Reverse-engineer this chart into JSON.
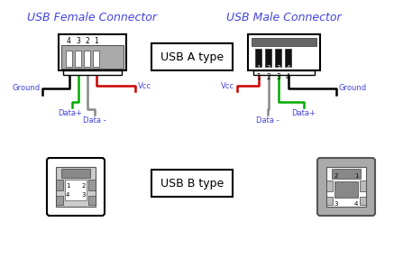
{
  "title_female": "USB Female Connector",
  "title_male": "USB Male Connector",
  "label_a": "USB A type",
  "label_b": "USB B type",
  "title_color": "#4444dd",
  "bg_color": "#ffffff",
  "wire_colors": {
    "ground": "#000000",
    "vcc": "#cc0000",
    "data_plus": "#00aa00",
    "data_minus": "#888888"
  },
  "figsize": [
    4.37,
    2.87
  ],
  "dpi": 100
}
